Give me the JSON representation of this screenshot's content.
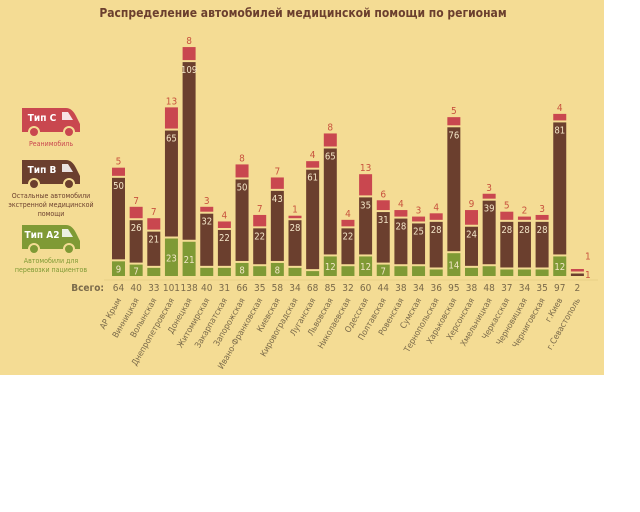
{
  "chart_data": {
    "type": "bar",
    "stacked": true,
    "title": "Распределение автомобилей медицинской помощи по регионам",
    "totals_label": "Всего:",
    "categories": [
      "АР Крым",
      "Винницкая",
      "Волынская",
      "Днепропетровская",
      "Донецкая",
      "Житомирская",
      "Закарпатская",
      "Запорожская",
      "Ивано-Франковская",
      "Киевская",
      "Кировоградская",
      "Луганская",
      "Львовская",
      "Николаевская",
      "Одесская",
      "Полтавская",
      "Ровенская",
      "Сумская",
      "Тернопольская",
      "Харьковская",
      "Херсонская",
      "Хмельницкая",
      "Черкасская",
      "Черновицкая",
      "Черниговская",
      "г.Киев",
      "г.Севастополь"
    ],
    "totals": [
      64,
      40,
      33,
      101,
      138,
      40,
      31,
      66,
      35,
      58,
      34,
      68,
      85,
      32,
      60,
      44,
      38,
      34,
      36,
      95,
      38,
      48,
      37,
      34,
      35,
      97,
      2
    ],
    "series": [
      {
        "name": "Тип A2",
        "description": "Автомобили для перевозки пациентов",
        "color": "#7f9a35",
        "values": [
          9,
          7,
          5,
          23,
          21,
          5,
          5,
          8,
          6,
          8,
          5,
          3,
          12,
          6,
          12,
          7,
          6,
          6,
          4,
          14,
          5,
          6,
          4,
          4,
          4,
          12,
          0
        ]
      },
      {
        "name": "Тип B",
        "description": "Остальные автомобили экстренной медицинской помощи",
        "color": "#6b3f2e",
        "values": [
          50,
          26,
          21,
          65,
          109,
          32,
          22,
          50,
          22,
          43,
          28,
          61,
          65,
          22,
          35,
          31,
          28,
          25,
          28,
          76,
          24,
          39,
          28,
          28,
          28,
          81,
          1
        ]
      },
      {
        "name": "Тип C",
        "description": "Реанимобиль",
        "color": "#c9474f",
        "values": [
          5,
          7,
          7,
          13,
          8,
          3,
          4,
          8,
          7,
          7,
          1,
          4,
          8,
          4,
          13,
          6,
          4,
          3,
          4,
          5,
          9,
          3,
          5,
          2,
          3,
          4,
          1
        ]
      }
    ],
    "grid": false,
    "legend": "left"
  },
  "legend": {
    "items": [
      {
        "label": "Тип C",
        "lines": [
          "Реанимобиль"
        ],
        "color": "#c9474f"
      },
      {
        "label": "Тип B",
        "lines": [
          "Остальные автомобили",
          "экстренной медицинской",
          "помощи"
        ],
        "color": "#6b3f2e"
      },
      {
        "label": "Тип A2",
        "lines": [
          "Автомобили для",
          "перевозки пациентов"
        ],
        "color": "#7f9a35"
      }
    ]
  },
  "colors": {
    "background": "#f4dc94",
    "top_label": "#c8533e",
    "axis_text": "#7a6a4a"
  }
}
